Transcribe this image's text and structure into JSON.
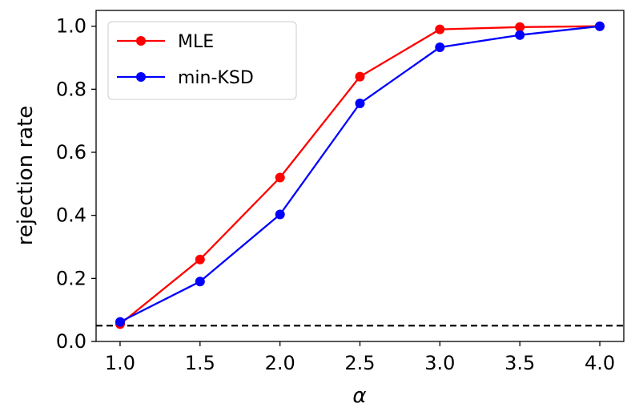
{
  "chart_data": {
    "type": "line",
    "title": "",
    "xlabel": "α",
    "ylabel": "rejection rate",
    "x": [
      1.0,
      1.5,
      2.0,
      2.5,
      3.0,
      3.5,
      4.0
    ],
    "xlim": [
      0.85,
      4.15
    ],
    "ylim": [
      0.0,
      1.05
    ],
    "xticks": [
      "1.0",
      "1.5",
      "2.0",
      "2.5",
      "3.0",
      "3.5",
      "4.0"
    ],
    "yticks": [
      "0.0",
      "0.2",
      "0.4",
      "0.6",
      "0.8",
      "1.0"
    ],
    "series": [
      {
        "name": "MLE",
        "color": "#ff0000",
        "values": [
          0.055,
          0.26,
          0.52,
          0.84,
          0.99,
          0.997,
          1.0
        ]
      },
      {
        "name": "min-KSD",
        "color": "#0000ff",
        "values": [
          0.062,
          0.19,
          0.403,
          0.755,
          0.933,
          0.972,
          1.0
        ]
      }
    ],
    "reference_line": {
      "y": 0.05,
      "style": "dashed",
      "color": "#000000"
    },
    "legend": {
      "placement": "top-left"
    },
    "grid": false
  }
}
